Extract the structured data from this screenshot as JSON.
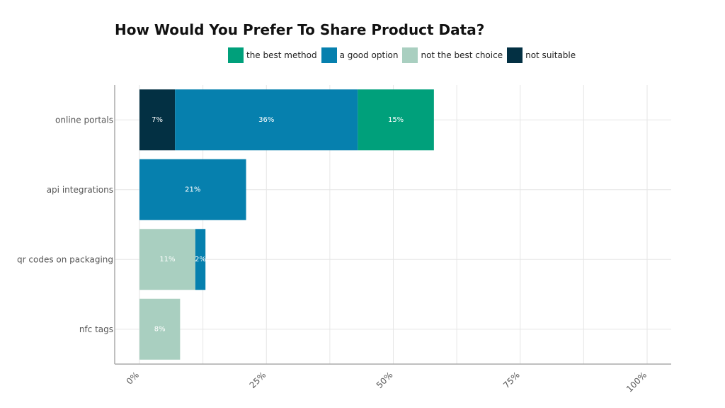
{
  "chart_data": {
    "type": "bar",
    "orientation": "horizontal",
    "stacked": true,
    "title": "How Would You Prefer To Share Product Data?",
    "categories": [
      "online portals",
      "api integrations",
      "qr codes on packaging",
      "nfc tags"
    ],
    "series": [
      {
        "name": "not suitable",
        "color": "#033043",
        "values": [
          7,
          0,
          0,
          0
        ],
        "labels": [
          "7%",
          "",
          "",
          ""
        ]
      },
      {
        "name": "not the best choice",
        "color": "#a9cfc0",
        "values": [
          0,
          0,
          11,
          8
        ],
        "labels": [
          "",
          "",
          "11%",
          "8%"
        ]
      },
      {
        "name": "a good option",
        "color": "#0680ae",
        "values": [
          36,
          21,
          2,
          0
        ],
        "labels": [
          "36%",
          "21%",
          "2%",
          ""
        ]
      },
      {
        "name": "the best method",
        "color": "#00a07b",
        "values": [
          15,
          0,
          0,
          0
        ],
        "labels": [
          "15%",
          "",
          "",
          ""
        ]
      }
    ],
    "legend_order": [
      "the best method",
      "a good option",
      "not the best choice",
      "not suitable"
    ],
    "xlim": [
      0,
      100
    ],
    "xticks": [
      0,
      25,
      50,
      75,
      100
    ],
    "xtick_labels": [
      "0%",
      "25%",
      "50%",
      "75%",
      "100%"
    ],
    "xlabel": "",
    "ylabel": "",
    "grid": true,
    "legend_position": "top"
  }
}
